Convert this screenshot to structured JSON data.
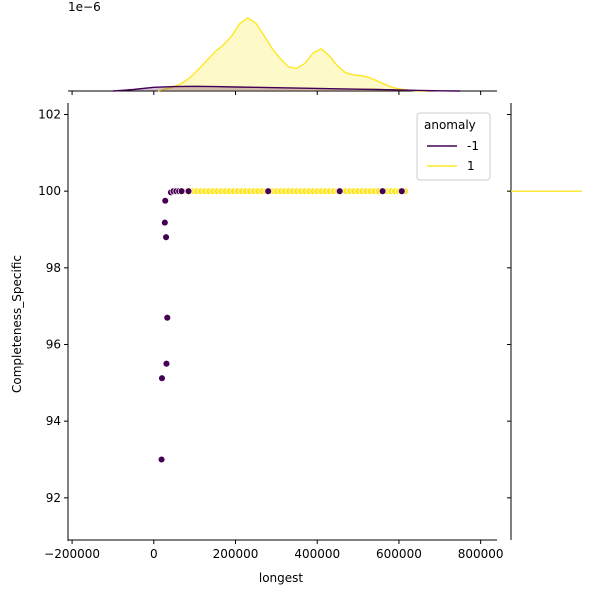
{
  "chart_data": {
    "type": "scatter",
    "subtype": "jointplot",
    "xlabel": "longest",
    "ylabel": "Completeness_Specific",
    "xlim": [
      -210000,
      840000
    ],
    "ylim": [
      90.9,
      102.3
    ],
    "xticks": [
      -200000,
      0,
      200000,
      400000,
      600000,
      800000
    ],
    "xtick_labels": [
      "−200000",
      "0",
      "200000",
      "400000",
      "600000",
      "800000"
    ],
    "yticks": [
      92,
      94,
      96,
      98,
      100,
      102
    ],
    "ytick_labels": [
      "92",
      "94",
      "96",
      "98",
      "100",
      "102"
    ],
    "legend": {
      "title": "anomaly",
      "placement": "top-right",
      "entries": [
        {
          "label": "-1",
          "color": "#440154"
        },
        {
          "label": "1",
          "color": "#fde725"
        }
      ]
    },
    "colors": {
      "anomaly_-1": "#440154",
      "anomaly_1": "#fde725"
    },
    "series": [
      {
        "name": "1",
        "color": "#fde725",
        "points": [
          [
            50000,
            100
          ],
          [
            60000,
            100
          ],
          [
            65000,
            100
          ],
          [
            75000,
            100
          ],
          [
            85000,
            100
          ],
          [
            95000,
            100
          ],
          [
            105000,
            100
          ],
          [
            115000,
            100
          ],
          [
            125000,
            100
          ],
          [
            135000,
            100
          ],
          [
            145000,
            100
          ],
          [
            155000,
            100
          ],
          [
            165000,
            100
          ],
          [
            175000,
            100
          ],
          [
            185000,
            100
          ],
          [
            195000,
            100
          ],
          [
            205000,
            100
          ],
          [
            215000,
            100
          ],
          [
            225000,
            100
          ],
          [
            235000,
            100
          ],
          [
            245000,
            100
          ],
          [
            255000,
            100
          ],
          [
            265000,
            100
          ],
          [
            275000,
            100
          ],
          [
            290000,
            100
          ],
          [
            300000,
            100
          ],
          [
            310000,
            100
          ],
          [
            320000,
            100
          ],
          [
            330000,
            100
          ],
          [
            340000,
            100
          ],
          [
            350000,
            100
          ],
          [
            360000,
            100
          ],
          [
            370000,
            100
          ],
          [
            380000,
            100
          ],
          [
            390000,
            100
          ],
          [
            400000,
            100
          ],
          [
            410000,
            100
          ],
          [
            420000,
            100
          ],
          [
            430000,
            100
          ],
          [
            440000,
            100
          ],
          [
            450000,
            100
          ],
          [
            470000,
            100
          ],
          [
            480000,
            100
          ],
          [
            490000,
            100
          ],
          [
            500000,
            100
          ],
          [
            510000,
            100
          ],
          [
            520000,
            100
          ],
          [
            530000,
            100
          ],
          [
            540000,
            100
          ],
          [
            550000,
            100
          ],
          [
            570000,
            100
          ],
          [
            580000,
            100
          ],
          [
            590000,
            100
          ],
          [
            600000,
            100
          ],
          [
            615000,
            100
          ]
        ]
      },
      {
        "name": "-1",
        "color": "#440154",
        "points": [
          [
            42000,
            99.97
          ],
          [
            48000,
            100
          ],
          [
            55000,
            100
          ],
          [
            62000,
            100
          ],
          [
            68000,
            100
          ],
          [
            85000,
            100
          ],
          [
            280000,
            100
          ],
          [
            455000,
            100
          ],
          [
            560000,
            100
          ],
          [
            607000,
            100
          ],
          [
            28000,
            99.75
          ],
          [
            27000,
            99.18
          ],
          [
            30000,
            98.8
          ],
          [
            33000,
            96.7
          ],
          [
            31000,
            95.5
          ],
          [
            20000,
            95.12
          ],
          [
            19000,
            93.0
          ]
        ]
      }
    ],
    "top_marginal": {
      "type": "kde",
      "scale_label": "1e−6",
      "series": [
        {
          "name": "1",
          "color": "#fde725",
          "x": [
            10000,
            30000,
            50000,
            70000,
            90000,
            110000,
            130000,
            150000,
            170000,
            190000,
            210000,
            230000,
            250000,
            270000,
            290000,
            310000,
            330000,
            350000,
            370000,
            390000,
            410000,
            430000,
            450000,
            470000,
            490000,
            510000,
            530000,
            550000,
            570000,
            590000,
            610000,
            630000,
            650000,
            670000
          ],
          "density": [
            0.0,
            0.03,
            0.06,
            0.11,
            0.19,
            0.3,
            0.42,
            0.54,
            0.63,
            0.75,
            0.92,
            1.0,
            0.93,
            0.76,
            0.58,
            0.44,
            0.33,
            0.31,
            0.38,
            0.52,
            0.58,
            0.48,
            0.34,
            0.25,
            0.22,
            0.21,
            0.18,
            0.13,
            0.08,
            0.04,
            0.02,
            0.01,
            0.0,
            0.0
          ]
        },
        {
          "name": "-1",
          "color": "#440154",
          "x": [
            -100000,
            -50000,
            0,
            50000,
            100000,
            150000,
            200000,
            250000,
            300000,
            350000,
            400000,
            450000,
            500000,
            550000,
            600000,
            650000,
            700000,
            750000
          ],
          "density": [
            0.0,
            0.02,
            0.05,
            0.06,
            0.065,
            0.06,
            0.055,
            0.05,
            0.045,
            0.04,
            0.035,
            0.03,
            0.025,
            0.02,
            0.015,
            0.008,
            0.003,
            0.0
          ]
        }
      ]
    },
    "right_marginal": {
      "type": "kde",
      "series": [
        {
          "name": "1",
          "color": "#fde725",
          "y": 100
        }
      ]
    }
  }
}
